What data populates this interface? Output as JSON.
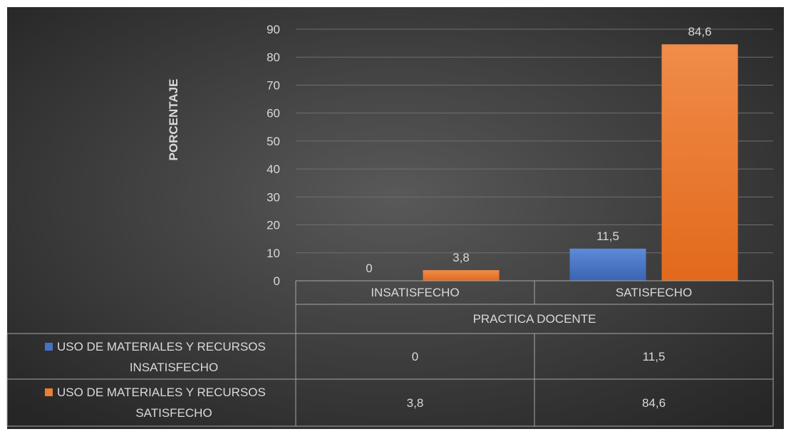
{
  "chart_data": {
    "type": "bar",
    "title": "",
    "ylabel": "PORCENTAJE",
    "xlabel": "PRACTICA DOCENTE",
    "ylim": [
      0,
      90
    ],
    "yticks": [
      0,
      10,
      20,
      30,
      40,
      50,
      60,
      70,
      80,
      90
    ],
    "categories": [
      "INSATISFECHO",
      "SATISFECHO"
    ],
    "series": [
      {
        "name": "USO DE MATERIALES Y RECURSOS INSATISFECHO",
        "name_lines": [
          "USO DE MATERIALES Y RECURSOS",
          "INSATISFECHO"
        ],
        "color": "#4472c4",
        "values": [
          0,
          11.5
        ],
        "labels": [
          "0",
          "11,5"
        ]
      },
      {
        "name": "USO DE MATERIALES Y RECURSOS SATISFECHO",
        "name_lines": [
          "USO DE MATERIALES Y RECURSOS",
          "SATISFECHO"
        ],
        "color": "#ed7d31",
        "values": [
          3.8,
          84.6
        ],
        "labels": [
          "3,8",
          "84,6"
        ]
      }
    ],
    "grid": true,
    "legend": "data-table"
  },
  "colors": {
    "background_center": "#595959",
    "background_edge": "#262626",
    "text": "#d9d9d9",
    "grid": "#6e6e6e",
    "table_border": "#a6a6a6"
  }
}
